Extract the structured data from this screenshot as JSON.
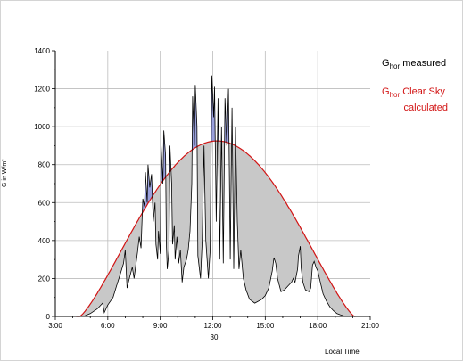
{
  "chart_data": {
    "type": "area",
    "xlabel": "Local Time",
    "ylabel": "G in W/m²",
    "x_date_label": "30",
    "xlim": [
      3,
      21
    ],
    "ylim": [
      0,
      1400
    ],
    "x_ticks": [
      3,
      6,
      9,
      12,
      15,
      18,
      21
    ],
    "x_tick_labels": [
      "3:00",
      "6:00",
      "9:00",
      "12:00",
      "15:00",
      "18:00",
      "21:00"
    ],
    "y_ticks": [
      0,
      200,
      400,
      600,
      800,
      1000,
      1200,
      1400
    ],
    "y_tick_labels": [
      "0",
      "200",
      "400",
      "600",
      "800",
      "1000",
      "1200",
      "1400"
    ],
    "grid": true,
    "legend": {
      "position": "right",
      "measured": {
        "prefix": "G",
        "sub": "hor",
        "text": "measured",
        "color": "#000000"
      },
      "clear": {
        "prefix": "G",
        "sub": "hor",
        "text": "Clear Sky",
        "text2": "calculated",
        "color": "#d21414"
      }
    },
    "series": [
      {
        "name": "Ghor measured",
        "color": "#000000",
        "fill": "#c8c8c8",
        "points": [
          [
            3,
            0
          ],
          [
            4.6,
            0
          ],
          [
            5.0,
            15
          ],
          [
            5.4,
            40
          ],
          [
            5.7,
            70
          ],
          [
            5.8,
            20
          ],
          [
            6.0,
            60
          ],
          [
            6.3,
            100
          ],
          [
            6.5,
            160
          ],
          [
            6.7,
            220
          ],
          [
            6.9,
            280
          ],
          [
            7.0,
            350
          ],
          [
            7.1,
            150
          ],
          [
            7.2,
            190
          ],
          [
            7.4,
            260
          ],
          [
            7.5,
            200
          ],
          [
            7.7,
            340
          ],
          [
            7.8,
            420
          ],
          [
            7.9,
            360
          ],
          [
            8.0,
            620
          ],
          [
            8.1,
            580
          ],
          [
            8.15,
            760
          ],
          [
            8.25,
            600
          ],
          [
            8.3,
            800
          ],
          [
            8.4,
            680
          ],
          [
            8.5,
            750
          ],
          [
            8.6,
            500
          ],
          [
            8.7,
            600
          ],
          [
            8.75,
            380
          ],
          [
            8.85,
            300
          ],
          [
            8.9,
            450
          ],
          [
            9.0,
            330
          ],
          [
            9.05,
            900
          ],
          [
            9.15,
            700
          ],
          [
            9.2,
            980
          ],
          [
            9.3,
            850
          ],
          [
            9.35,
            380
          ],
          [
            9.4,
            250
          ],
          [
            9.5,
            350
          ],
          [
            9.55,
            900
          ],
          [
            9.65,
            700
          ],
          [
            9.7,
            380
          ],
          [
            9.8,
            480
          ],
          [
            9.85,
            300
          ],
          [
            9.95,
            420
          ],
          [
            10.05,
            280
          ],
          [
            10.15,
            350
          ],
          [
            10.25,
            180
          ],
          [
            10.35,
            260
          ],
          [
            10.5,
            300
          ],
          [
            10.6,
            350
          ],
          [
            10.7,
            450
          ],
          [
            10.8,
            700
          ],
          [
            10.85,
            1160
          ],
          [
            10.95,
            900
          ],
          [
            11.0,
            1220
          ],
          [
            11.1,
            1000
          ],
          [
            11.15,
            320
          ],
          [
            11.3,
            200
          ],
          [
            11.4,
            400
          ],
          [
            11.5,
            900
          ],
          [
            11.6,
            400
          ],
          [
            11.75,
            200
          ],
          [
            11.85,
            350
          ],
          [
            11.95,
            1270
          ],
          [
            12.05,
            1050
          ],
          [
            12.1,
            1210
          ],
          [
            12.2,
            500
          ],
          [
            12.3,
            1150
          ],
          [
            12.4,
            300
          ],
          [
            12.5,
            1000
          ],
          [
            12.6,
            280
          ],
          [
            12.7,
            1150
          ],
          [
            12.8,
            900
          ],
          [
            12.9,
            1200
          ],
          [
            13.0,
            300
          ],
          [
            13.1,
            1100
          ],
          [
            13.2,
            250
          ],
          [
            13.3,
            1000
          ],
          [
            13.4,
            500
          ],
          [
            13.5,
            250
          ],
          [
            13.6,
            350
          ],
          [
            13.75,
            200
          ],
          [
            13.9,
            140
          ],
          [
            14.1,
            90
          ],
          [
            14.4,
            70
          ],
          [
            14.6,
            80
          ],
          [
            14.8,
            90
          ],
          [
            15.0,
            110
          ],
          [
            15.2,
            150
          ],
          [
            15.4,
            240
          ],
          [
            15.5,
            310
          ],
          [
            15.6,
            280
          ],
          [
            15.7,
            200
          ],
          [
            15.9,
            130
          ],
          [
            16.1,
            140
          ],
          [
            16.3,
            160
          ],
          [
            16.5,
            180
          ],
          [
            16.6,
            200
          ],
          [
            16.7,
            180
          ],
          [
            16.85,
            250
          ],
          [
            16.9,
            320
          ],
          [
            17.0,
            370
          ],
          [
            17.05,
            260
          ],
          [
            17.15,
            180
          ],
          [
            17.3,
            140
          ],
          [
            17.5,
            130
          ],
          [
            17.6,
            150
          ],
          [
            17.7,
            270
          ],
          [
            17.8,
            290
          ],
          [
            17.9,
            260
          ],
          [
            18.0,
            240
          ],
          [
            18.1,
            200
          ],
          [
            18.2,
            160
          ],
          [
            18.3,
            120
          ],
          [
            18.5,
            80
          ],
          [
            18.7,
            50
          ],
          [
            18.9,
            30
          ],
          [
            19.1,
            15
          ],
          [
            19.3,
            8
          ],
          [
            19.6,
            0
          ],
          [
            21,
            0
          ]
        ]
      },
      {
        "name": "Ghor Clear Sky calculated",
        "color": "#d21414",
        "curve": {
          "sunrise": 4.4,
          "sunset": 20.1,
          "peak_time": 12.25,
          "peak_value": 925
        }
      }
    ]
  }
}
